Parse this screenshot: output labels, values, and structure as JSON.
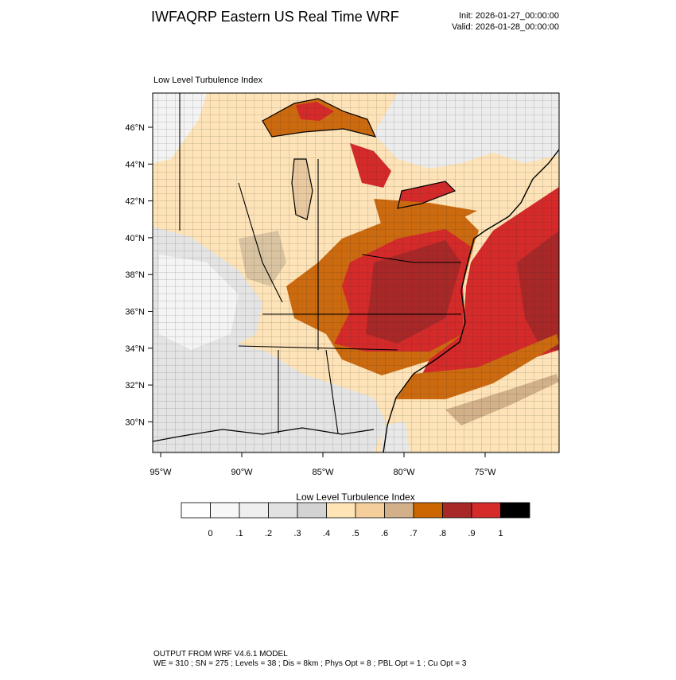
{
  "header": {
    "title": "IWFAQRP Eastern US Real Time WRF",
    "init": "Init: 2026-01-27_00:00:00",
    "valid": "Valid: 2026-01-28_00:00:00"
  },
  "panel": {
    "title": "Low Level Turbulence Index",
    "lat_labels": [
      "46°N",
      "44°N",
      "42°N",
      "40°N",
      "38°N",
      "36°N",
      "34°N",
      "32°N",
      "30°N"
    ],
    "lon_labels": [
      "95°W",
      "90°W",
      "85°W",
      "80°W",
      "75°W"
    ]
  },
  "colorbar": {
    "title": "Low Level Turbulence Index",
    "labels": [
      "0",
      ".1",
      ".2",
      ".3",
      ".4",
      ".5",
      ".6",
      ".7",
      ".8",
      ".9",
      "1"
    ],
    "colors": [
      "#ffffff",
      "#f7f7f7",
      "#efefef",
      "#e2e2e2",
      "#d3d3d3",
      "#ffe4b5",
      "#f5cf9b",
      "#d2b08a",
      "#cc6600",
      "#a82828",
      "#d42a2a",
      "#000000"
    ]
  },
  "footer": {
    "line1": "OUTPUT FROM WRF V4.6.1 MODEL",
    "line2": "WE = 310 ; SN = 275 ; Levels = 38 ; Dis = 8km ; Phys Opt = 8 ; PBL Opt = 1 ; Cu Opt = 3"
  }
}
